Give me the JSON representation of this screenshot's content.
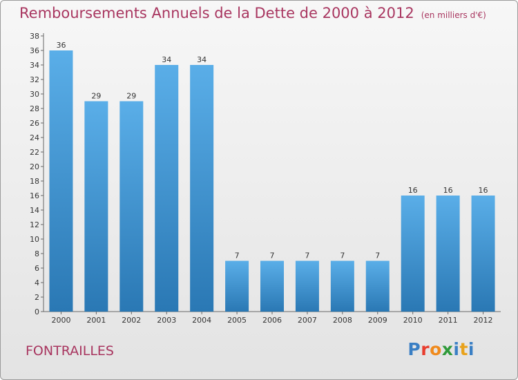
{
  "header": {
    "title": "Remboursements Annuels de la Dette de 2000 à 2012",
    "subtitle": "(en milliers d'€)"
  },
  "footer": {
    "commune": "FONTRAILLES",
    "brand": "Proxiti"
  },
  "colors": {
    "title": "#a8355f",
    "bar_top": "#5aaee8",
    "bar_bottom": "#2a78b4",
    "brand_letters": [
      "#3a7fc4",
      "#e83d2e",
      "#f08a1c",
      "#2f9a3a",
      "#3a7fc4",
      "#e8a21c",
      "#3a7fc4"
    ]
  },
  "chart_data": {
    "type": "bar",
    "title": "Remboursements Annuels de la Dette de 2000 à 2012",
    "subtitle": "(en milliers d'€)",
    "categories": [
      "2000",
      "2001",
      "2002",
      "2003",
      "2004",
      "2005",
      "2006",
      "2007",
      "2008",
      "2009",
      "2010",
      "2011",
      "2012"
    ],
    "values": [
      36,
      29,
      29,
      34,
      34,
      7,
      7,
      7,
      7,
      7,
      16,
      16,
      16
    ],
    "data_labels": [
      "36",
      "29",
      "29",
      "34",
      "34",
      "7",
      "7",
      "7",
      "7",
      "7",
      "16",
      "16",
      "16"
    ],
    "ylim": [
      0,
      38
    ],
    "yticks": [
      0,
      2,
      4,
      6,
      8,
      10,
      12,
      14,
      16,
      18,
      20,
      22,
      24,
      26,
      28,
      30,
      32,
      34,
      36,
      38
    ],
    "grid": false,
    "xlabel": "",
    "ylabel": ""
  }
}
